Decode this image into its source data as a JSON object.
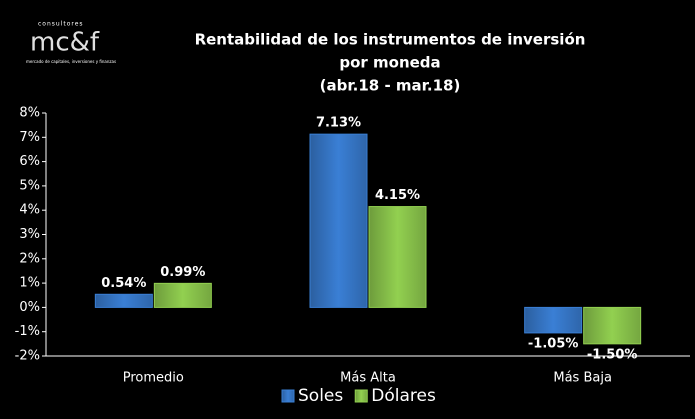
{
  "logo": {
    "tagline": "consultores",
    "name": "mc&f",
    "subtitle": "mercado de capitales, inversiones y finanzas"
  },
  "chart_data": {
    "type": "bar",
    "title": [
      "Rentabilidad de los instrumentos de inversión",
      "por moneda",
      "(abr.18 - mar.18)"
    ],
    "categories": [
      "Promedio",
      "Más Alta",
      "Más Baja"
    ],
    "series": [
      {
        "name": "Soles",
        "color": "#3a7fd5",
        "values": [
          0.54,
          7.13,
          -1.05
        ],
        "value_labels": [
          "0.54%",
          "7.13%",
          "-1.05%"
        ]
      },
      {
        "name": "Dólares",
        "color": "#92d050",
        "values": [
          0.99,
          4.15,
          -1.5
        ],
        "value_labels": [
          "0.99%",
          "4.15%",
          "-1.50%"
        ]
      }
    ],
    "ylim": [
      -2,
      8
    ],
    "yticks": [
      {
        "value": -2,
        "label": "-2%"
      },
      {
        "value": -1,
        "label": "-1%"
      },
      {
        "value": 0,
        "label": "0%"
      },
      {
        "value": 1,
        "label": "1%"
      },
      {
        "value": 2,
        "label": "2%"
      },
      {
        "value": 3,
        "label": "3%"
      },
      {
        "value": 4,
        "label": "4%"
      },
      {
        "value": 5,
        "label": "5%"
      },
      {
        "value": 6,
        "label": "6%"
      },
      {
        "value": 7,
        "label": "7%"
      },
      {
        "value": 8,
        "label": "8%"
      }
    ],
    "legend": "bottom",
    "grid": false
  }
}
